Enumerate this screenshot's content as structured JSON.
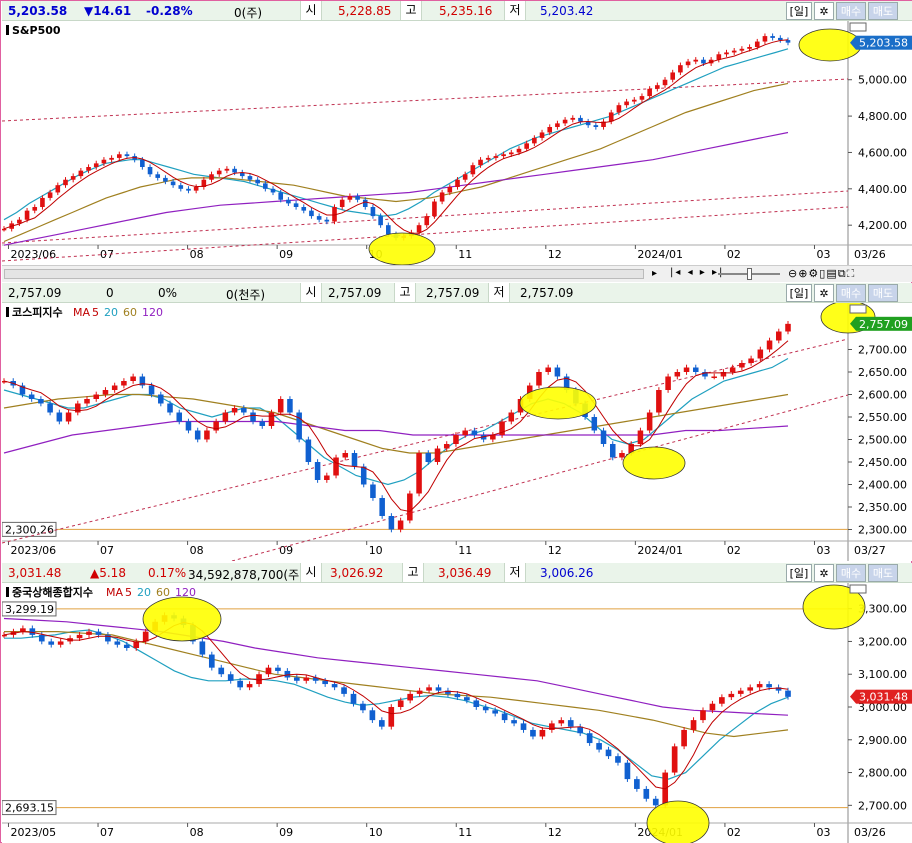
{
  "panels": [
    {
      "info": {
        "price": "5,203.58",
        "change": "▼14.61",
        "pct": "-0.28%",
        "volume": "0(주)",
        "open_label": "시",
        "open": "5,228.85",
        "high_label": "고",
        "high": "5,235.16",
        "low_label": "저",
        "low": "5,203.42"
      },
      "buttons": {
        "day": "[일]",
        "buy": "매수",
        "sell": "매도"
      },
      "chart_data": {
        "type": "candlestick",
        "title": "S&P500",
        "ma_legend": [],
        "y_ticks": [
          "5,000.00",
          "4,800.00",
          "4,600.00",
          "4,400.00",
          "4,200.00"
        ],
        "y_tick_values": [
          5000,
          4800,
          4600,
          4400,
          4200
        ],
        "ylim": [
          4080,
          5290
        ],
        "x_ticks": [
          "2023/06",
          "07",
          "08",
          "09",
          "10",
          "11",
          "12",
          "2024/01",
          "02",
          "03"
        ],
        "last_date": "03/26",
        "last_price_label": "5,203.58",
        "last_price": 5203.58,
        "close_series": [
          4180,
          4210,
          4230,
          4280,
          4300,
          4350,
          4380,
          4420,
          4450,
          4470,
          4500,
          4520,
          4540,
          4560,
          4570,
          4590,
          4580,
          4560,
          4520,
          4480,
          4460,
          4440,
          4420,
          4400,
          4390,
          4410,
          4450,
          4480,
          4500,
          4510,
          4490,
          4470,
          4450,
          4430,
          4400,
          4380,
          4340,
          4320,
          4300,
          4280,
          4250,
          4230,
          4220,
          4300,
          4340,
          4360,
          4340,
          4300,
          4250,
          4200,
          4150,
          4130,
          4140,
          4160,
          4200,
          4250,
          4330,
          4380,
          4410,
          4450,
          4480,
          4530,
          4560,
          4570,
          4580,
          4590,
          4600,
          4620,
          4650,
          4680,
          4710,
          4740,
          4760,
          4780,
          4790,
          4770,
          4750,
          4740,
          4770,
          4820,
          4860,
          4880,
          4890,
          4910,
          4950,
          4970,
          5000,
          5040,
          5080,
          5100,
          5110,
          5090,
          5110,
          5140,
          5150,
          5160,
          5170,
          5180,
          5210,
          5240,
          5230,
          5218,
          5204
        ],
        "ma_lines": [
          {
            "name": "MA20",
            "color": "#20a0c0",
            "values": [
              4230,
              4270,
              4320,
              4360,
              4400,
              4440,
              4480,
              4510,
              4540,
              4550,
              4560,
              4560,
              4540,
              4520,
              4500,
              4480,
              4470,
              4460,
              4450,
              4440,
              4420,
              4400,
              4380,
              4360,
              4340,
              4320,
              4300,
              4280,
              4270,
              4260,
              4250,
              4260,
              4290,
              4330,
              4380,
              4420,
              4460,
              4500,
              4540,
              4580,
              4620,
              4650,
              4680,
              4700,
              4720,
              4740,
              4760,
              4780,
              4800,
              4830,
              4860,
              4890,
              4920,
              4950,
              4980,
              5010,
              5040,
              5070,
              5090,
              5110,
              5130,
              5150,
              5170
            ]
          },
          {
            "name": "MA60",
            "color": "#a08020",
            "values": [
              4110,
              4150,
              4190,
              4230,
              4270,
              4310,
              4350,
              4380,
              4410,
              4430,
              4450,
              4460,
              4460,
              4460,
              4450,
              4440,
              4430,
              4420,
              4400,
              4380,
              4360,
              4350,
              4340,
              4330,
              4340,
              4350,
              4370,
              4390,
              4410,
              4440,
              4470,
              4500,
              4530,
              4560,
              4590,
              4620,
              4660,
              4700,
              4740,
              4780,
              4820,
              4850,
              4880,
              4910,
              4940,
              4960,
              4980
            ]
          },
          {
            "name": "MA120",
            "color": "#9020c0",
            "values": [
              4090,
              4120,
              4150,
              4180,
              4210,
              4240,
              4270,
              4290,
              4310,
              4320,
              4330,
              4340,
              4350,
              4360,
              4370,
              4380,
              4400,
              4420,
              4440,
              4460,
              4480,
              4500,
              4520,
              4540,
              4560,
              4590,
              4620,
              4650,
              4680,
              4710
            ]
          }
        ],
        "highlights": [
          "November low",
          "latest high"
        ]
      }
    },
    {
      "info": {
        "price": "2,757.09",
        "change": "0",
        "pct": "0%",
        "volume": "0(천주)",
        "open_label": "시",
        "open": "2,757.09",
        "high_label": "고",
        "high": "2,757.09",
        "low_label": "저",
        "low": "2,757.09"
      },
      "buttons": {
        "day": "[일]",
        "buy": "매수",
        "sell": "매도"
      },
      "chart_data": {
        "type": "candlestick",
        "title": "코스피지수",
        "ma_legend": [
          {
            "label": "MA",
            "color": "#c00000"
          },
          {
            "label": "5",
            "color": "#c00000"
          },
          {
            "label": "20",
            "color": "#20a0c0"
          },
          {
            "label": "60",
            "color": "#a08020"
          },
          {
            "label": "120",
            "color": "#9020c0"
          }
        ],
        "y_ticks": [
          "2,700.00",
          "2,650.00",
          "2,600.00",
          "2,550.00",
          "2,500.00",
          "2,450.00",
          "2,400.00",
          "2,350.00",
          "2,300.00"
        ],
        "y_tick_values": [
          2700,
          2650,
          2600,
          2550,
          2500,
          2450,
          2400,
          2350,
          2300
        ],
        "ylim": [
          2270,
          2790
        ],
        "x_ticks": [
          "2023/06",
          "07",
          "08",
          "09",
          "10",
          "11",
          "12",
          "2024/01",
          "02",
          "03"
        ],
        "last_date": "03/27",
        "last_price_label": "2,757.09",
        "last_price": 2757.09,
        "support_label": "2,300.26",
        "support": 2300.26,
        "close_series": [
          2630,
          2620,
          2600,
          2590,
          2580,
          2560,
          2540,
          2560,
          2580,
          2590,
          2600,
          2610,
          2620,
          2630,
          2640,
          2620,
          2600,
          2580,
          2560,
          2540,
          2520,
          2500,
          2520,
          2540,
          2560,
          2570,
          2560,
          2540,
          2530,
          2560,
          2590,
          2560,
          2500,
          2450,
          2410,
          2420,
          2460,
          2470,
          2440,
          2400,
          2370,
          2330,
          2300,
          2320,
          2380,
          2470,
          2450,
          2480,
          2490,
          2510,
          2520,
          2510,
          2500,
          2510,
          2540,
          2560,
          2590,
          2620,
          2650,
          2660,
          2640,
          2610,
          2580,
          2550,
          2520,
          2490,
          2460,
          2470,
          2490,
          2520,
          2560,
          2610,
          2640,
          2650,
          2660,
          2650,
          2640,
          2640,
          2650,
          2660,
          2670,
          2680,
          2700,
          2720,
          2740,
          2757
        ],
        "ma_lines": [
          {
            "name": "MA20",
            "color": "#20a0c0",
            "values": [
              2610,
              2600,
              2590,
              2580,
              2570,
              2570,
              2580,
              2590,
              2600,
              2600,
              2590,
              2570,
              2560,
              2550,
              2560,
              2570,
              2570,
              2550,
              2520,
              2490,
              2460,
              2440,
              2420,
              2410,
              2400,
              2410,
              2430,
              2460,
              2490,
              2510,
              2520,
              2540,
              2560,
              2580,
              2590,
              2580,
              2560,
              2530,
              2500,
              2490,
              2500,
              2530,
              2560,
              2590,
              2610,
              2630,
              2640,
              2650,
              2660,
              2680
            ]
          },
          {
            "name": "MA60",
            "color": "#a08020",
            "values": [
              2570,
              2580,
              2590,
              2595,
              2600,
              2600,
              2595,
              2590,
              2580,
              2570,
              2560,
              2540,
              2520,
              2500,
              2480,
              2470,
              2470,
              2480,
              2490,
              2500,
              2510,
              2520,
              2530,
              2540,
              2550,
              2560,
              2570,
              2580,
              2590,
              2600
            ]
          },
          {
            "name": "MA120",
            "color": "#9020c0",
            "values": [
              2470,
              2490,
              2510,
              2520,
              2530,
              2540,
              2540,
              2540,
              2540,
              2530,
              2520,
              2520,
              2510,
              2510,
              2510,
              2510,
              2510,
              2510,
              2510,
              2510,
              2520,
              2520,
              2525,
              2530
            ]
          }
        ],
        "highlights": [
          "December high",
          "January low",
          "latest"
        ]
      }
    },
    {
      "info": {
        "price": "3,031.48",
        "change": "▲5.18",
        "pct": "0.17%",
        "volume": "34,592,878,700(주)",
        "open_label": "시",
        "open": "3,026.92",
        "high_label": "고",
        "high": "3,036.49",
        "low_label": "저",
        "low": "3,006.26"
      },
      "buttons": {
        "day": "[일]",
        "buy": "매수",
        "sell": "매도"
      },
      "chart_data": {
        "type": "candlestick",
        "title": "중국상해종합지수",
        "ma_legend": [
          {
            "label": "MA",
            "color": "#c00000"
          },
          {
            "label": "5",
            "color": "#c00000"
          },
          {
            "label": "20",
            "color": "#20a0c0"
          },
          {
            "label": "60",
            "color": "#a08020"
          },
          {
            "label": "120",
            "color": "#9020c0"
          }
        ],
        "y_ticks": [
          "3,300.00",
          "3,200.00",
          "3,100.00",
          "3,000.00",
          "2,900.00",
          "2,800.00",
          "2,700.00"
        ],
        "y_tick_values": [
          3300,
          3200,
          3100,
          3000,
          2900,
          2800,
          2700
        ],
        "ylim": [
          2640,
          3360
        ],
        "x_ticks": [
          "2023/05",
          "07",
          "08",
          "09",
          "10",
          "11",
          "12",
          "2024/01",
          "02",
          "03"
        ],
        "last_date": "03/26",
        "last_price_label": "3,031.48",
        "last_price": 3031.48,
        "resistance_label": "3,299.19",
        "resistance": 3299.19,
        "support_label": "2,693.15",
        "support": 2693.15,
        "close_series": [
          3220,
          3230,
          3240,
          3220,
          3200,
          3190,
          3200,
          3210,
          3220,
          3230,
          3220,
          3200,
          3190,
          3180,
          3200,
          3230,
          3260,
          3280,
          3270,
          3250,
          3200,
          3160,
          3120,
          3100,
          3080,
          3060,
          3070,
          3100,
          3120,
          3110,
          3090,
          3080,
          3090,
          3080,
          3070,
          3060,
          3040,
          3010,
          2990,
          2960,
          2940,
          3000,
          3020,
          3040,
          3050,
          3060,
          3050,
          3040,
          3030,
          3020,
          3000,
          2990,
          2980,
          2960,
          2950,
          2930,
          2910,
          2930,
          2950,
          2960,
          2940,
          2920,
          2890,
          2870,
          2850,
          2830,
          2780,
          2750,
          2720,
          2700,
          2800,
          2880,
          2930,
          2960,
          2990,
          3010,
          3030,
          3040,
          3050,
          3060,
          3070,
          3060,
          3050,
          3031
        ],
        "ma_lines": [
          {
            "name": "MA20",
            "color": "#20a0c0",
            "values": [
              3210,
              3210,
              3215,
              3220,
              3230,
              3235,
              3220,
              3200,
              3170,
              3140,
              3110,
              3090,
              3080,
              3080,
              3085,
              3085,
              3080,
              3070,
              3050,
              3030,
              3015,
              3005,
              3010,
              3020,
              3030,
              3035,
              3030,
              3020,
              3005,
              2990,
              2970,
              2950,
              2940,
              2930,
              2920,
              2900,
              2870,
              2830,
              2790,
              2780,
              2800,
              2850,
              2900,
              2940,
              2980,
              3010,
              3030
            ]
          },
          {
            "name": "MA60",
            "color": "#a08020",
            "values": [
              3230,
              3230,
              3230,
              3225,
              3220,
              3200,
              3180,
              3160,
              3140,
              3120,
              3100,
              3090,
              3080,
              3070,
              3060,
              3050,
              3040,
              3035,
              3030,
              3020,
              3010,
              3000,
              2990,
              2975,
              2960,
              2940,
              2920,
              2910,
              2920,
              2930
            ]
          },
          {
            "name": "MA120",
            "color": "#9020c0",
            "values": [
              3270,
              3265,
              3260,
              3250,
              3240,
              3230,
              3215,
              3200,
              3180,
              3165,
              3150,
              3140,
              3130,
              3120,
              3110,
              3100,
              3090,
              3080,
              3060,
              3040,
              3020,
              3000,
              2990,
              2985,
              2980,
              2975
            ]
          }
        ],
        "highlights": [
          "August high",
          "February low",
          "latest"
        ]
      }
    }
  ]
}
